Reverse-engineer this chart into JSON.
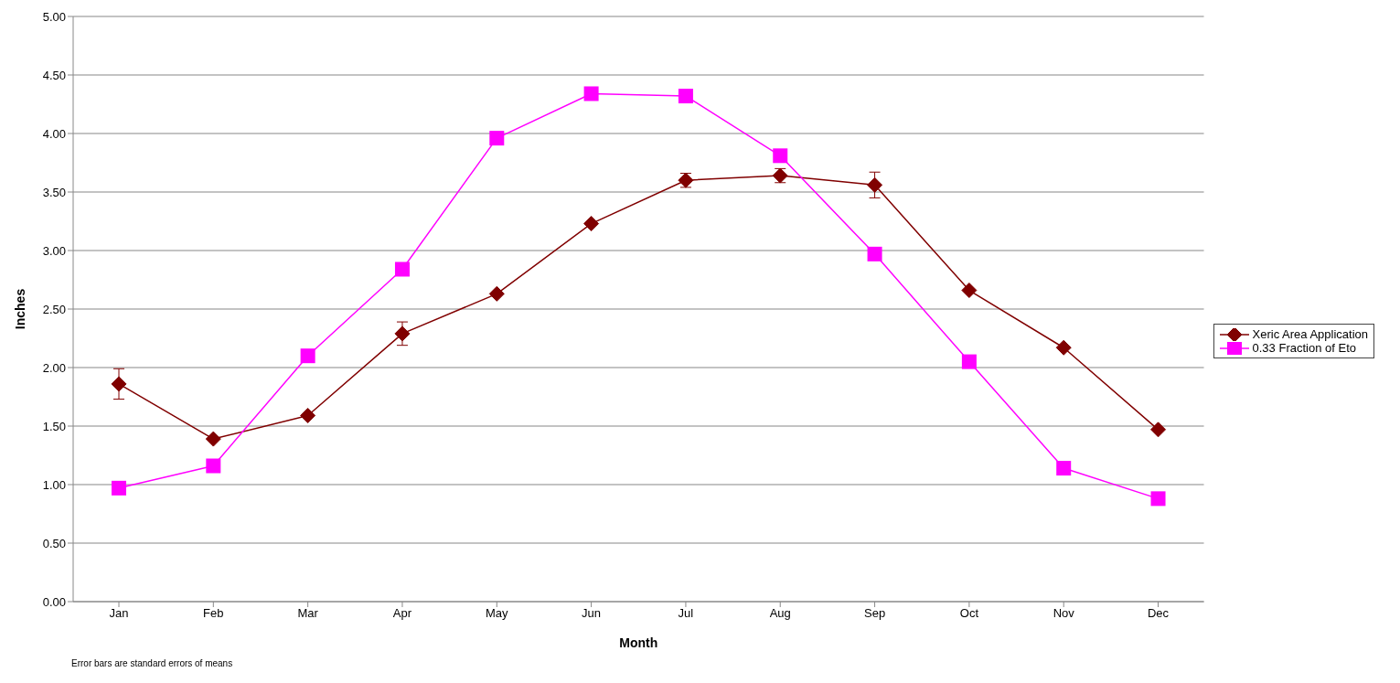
{
  "chart_data": {
    "type": "line",
    "xlabel": "Month",
    "ylabel": "Inches",
    "annotations": [
      "Error bars are standard errors of means"
    ],
    "categories": [
      "Jan",
      "Feb",
      "Mar",
      "Apr",
      "May",
      "Jun",
      "Jul",
      "Aug",
      "Sep",
      "Oct",
      "Nov",
      "Dec"
    ],
    "series": [
      {
        "name": "Xeric Area Application",
        "color": "#800000",
        "marker": "diamond",
        "values": [
          1.86,
          1.39,
          1.59,
          2.29,
          2.63,
          3.23,
          3.6,
          3.64,
          3.56,
          2.66,
          2.17,
          1.47
        ],
        "errors": [
          0.13,
          null,
          null,
          0.1,
          null,
          null,
          0.06,
          0.06,
          0.11,
          null,
          null,
          null
        ]
      },
      {
        "name": "0.33 Fraction of Eto",
        "color": "#ff00ff",
        "marker": "square",
        "values": [
          0.97,
          1.16,
          2.1,
          2.84,
          3.96,
          4.34,
          4.32,
          3.81,
          2.97,
          2.05,
          1.14,
          0.88
        ]
      }
    ],
    "ylim": [
      0,
      5
    ],
    "yticks": [
      {
        "value": 0,
        "label": "0.00"
      },
      {
        "value": 0.5,
        "label": "0.50"
      },
      {
        "value": 1,
        "label": "1.00"
      },
      {
        "value": 1.5,
        "label": "1.50"
      },
      {
        "value": 2,
        "label": "2.00"
      },
      {
        "value": 2.5,
        "label": "2.50"
      },
      {
        "value": 3,
        "label": "3.00"
      },
      {
        "value": 3.5,
        "label": "3.50"
      },
      {
        "value": 4,
        "label": "4.00"
      },
      {
        "value": 4.5,
        "label": "4.50"
      },
      {
        "value": 5,
        "label": "5.00"
      }
    ],
    "grid": "y",
    "legend": "right",
    "line_style": "solid"
  }
}
